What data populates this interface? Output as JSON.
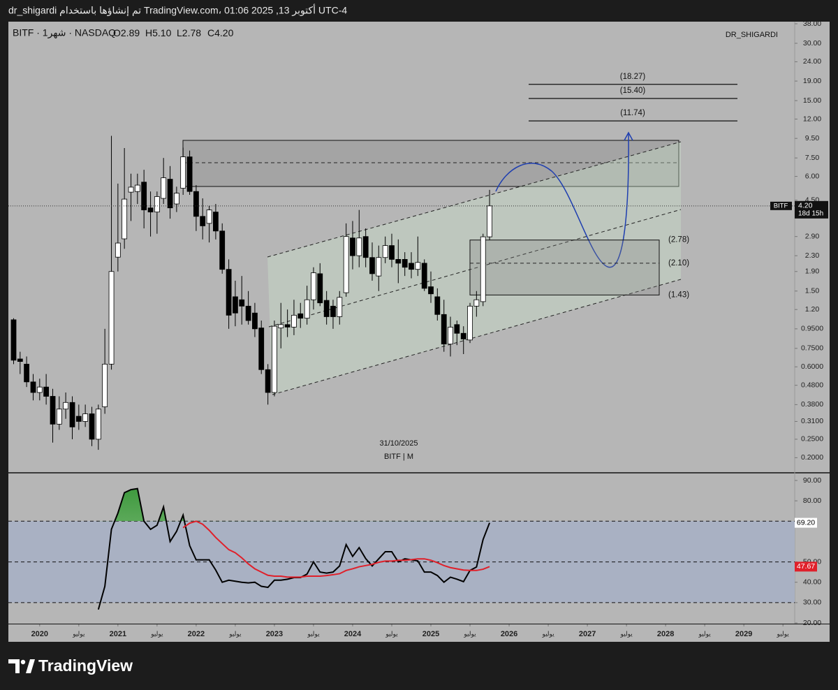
{
  "header": {
    "caption": "dr_shigardi تم إنشاؤها باستخدام TradingView.com، 01:06 2025 ,13 أكتوبر UTC-4"
  },
  "chart_data": [
    {
      "type": "candlestick",
      "symbol_line": "BITF · 1شهر · NASDAQ",
      "ohlc": [
        {
          "key": "O",
          "text": "2.89"
        },
        {
          "key": "H",
          "text": "5.10"
        },
        {
          "key": "L",
          "text": "2.78"
        },
        {
          "key": "C",
          "text": "4.20"
        }
      ],
      "watermark": "DR_SHIGARDI",
      "annotations": [
        "31/10/2025",
        "BITF | M"
      ],
      "log_scale": true,
      "grid": false,
      "up_color": "#ffffff",
      "down_color": "#000000",
      "xlim": [
        2019.6,
        2029.65
      ],
      "xticks": [
        2020,
        {
          "value": 2020.5,
          "label": "يوليو"
        },
        2021,
        {
          "value": 2021.5,
          "label": "يوليو"
        },
        2022,
        {
          "value": 2022.5,
          "label": "يوليو"
        },
        2023,
        {
          "value": 2023.5,
          "label": "يوليو"
        },
        2024,
        {
          "value": 2024.5,
          "label": "يوليو"
        },
        2025,
        {
          "value": 2025.5,
          "label": "يوليو"
        },
        2026,
        {
          "value": 2026.5,
          "label": "يوليو"
        },
        2027,
        {
          "value": 2027.5,
          "label": "يوليو"
        },
        2028,
        {
          "value": 2028.5,
          "label": "يوليو"
        },
        2029,
        {
          "value": 2029.5,
          "label": "يوليو"
        }
      ],
      "ylim": [
        0.168,
        38.65
      ],
      "yticks": [
        {
          "value": 38,
          "label": "38.00"
        },
        {
          "value": 30,
          "label": "30.00"
        },
        {
          "value": 24,
          "label": "24.00"
        },
        {
          "value": 19,
          "label": "19.00"
        },
        {
          "value": 15,
          "label": "15.00"
        },
        {
          "value": 12,
          "label": "12.00"
        },
        {
          "value": 9.5,
          "label": "9.50"
        },
        {
          "value": 7.5,
          "label": "7.50"
        },
        {
          "value": 6,
          "label": "6.00"
        },
        {
          "value": 4.5,
          "label": "4.50"
        },
        {
          "value": 2.9,
          "label": "2.90"
        },
        {
          "value": 2.3,
          "label": "2.30"
        },
        {
          "value": 1.9,
          "label": "1.90"
        },
        {
          "value": 1.5,
          "label": "1.50"
        },
        {
          "value": 1.2,
          "label": "1.20"
        },
        {
          "value": 0.95,
          "label": "0.9500"
        },
        {
          "value": 0.75,
          "label": "0.7500"
        },
        {
          "value": 0.6,
          "label": "0.6000"
        },
        {
          "value": 0.48,
          "label": "0.4800"
        },
        {
          "value": 0.38,
          "label": "0.3800"
        },
        {
          "value": 0.31,
          "label": "0.3100"
        },
        {
          "value": 0.25,
          "label": "0.2500"
        },
        {
          "value": 0.2,
          "label": "0.2000"
        }
      ],
      "x": [
        2019.667,
        2019.75,
        2019.833,
        2019.917,
        2020,
        2020.083,
        2020.167,
        2020.25,
        2020.333,
        2020.417,
        2020.5,
        2020.583,
        2020.667,
        2020.75,
        2020.833,
        2020.917,
        2021,
        2021.083,
        2021.167,
        2021.25,
        2021.333,
        2021.417,
        2021.5,
        2021.583,
        2021.667,
        2021.75,
        2021.833,
        2021.917,
        2022,
        2022.083,
        2022.167,
        2022.25,
        2022.333,
        2022.417,
        2022.5,
        2022.583,
        2022.667,
        2022.75,
        2022.833,
        2022.917,
        2023,
        2023.083,
        2023.167,
        2023.25,
        2023.333,
        2023.417,
        2023.5,
        2023.583,
        2023.667,
        2023.75,
        2023.833,
        2023.917,
        2024,
        2024.083,
        2024.167,
        2024.25,
        2024.333,
        2024.417,
        2024.5,
        2024.583,
        2024.667,
        2024.75,
        2024.833,
        2024.917,
        2025,
        2025.083,
        2025.167,
        2025.25,
        2025.333,
        2025.417,
        2025.5,
        2025.583,
        2025.667,
        2025.75
      ],
      "open": [
        1.06,
        0.66,
        0.62,
        0.5,
        0.44,
        0.47,
        0.42,
        0.3,
        0.36,
        0.39,
        0.33,
        0.31,
        0.34,
        0.25,
        0.37,
        0.62,
        2.26,
        2.82,
        4.96,
        5.0,
        5.6,
        4.1,
        3.9,
        4.6,
        5.8,
        4.3,
        5.2,
        7.6,
        5.0,
        3.7,
        3.4,
        3.9,
        3.1,
        1.95,
        1.4,
        1.35,
        1.25,
        1.15,
        0.96,
        0.58,
        0.44,
        0.96,
        1.0,
        0.97,
        1.14,
        1.08,
        1.35,
        1.85,
        1.34,
        1.25,
        1.1,
        1.47,
        2.85,
        2.3,
        2.9,
        2.25,
        1.8,
        2.25,
        2.6,
        2.2,
        2.2,
        2.1,
        1.95,
        2.1,
        1.58,
        1.4,
        1.13,
        0.79,
        1.0,
        0.9,
        0.83,
        1.25,
        1.32,
        2.89
      ],
      "high": [
        1.08,
        0.72,
        0.68,
        0.55,
        0.52,
        0.55,
        0.46,
        0.42,
        0.44,
        0.42,
        0.38,
        0.38,
        0.37,
        0.38,
        0.95,
        9.8,
        5.5,
        8.45,
        6.2,
        6.2,
        6.5,
        5.0,
        5.0,
        7.5,
        6.8,
        5.3,
        8.5,
        8.2,
        5.4,
        4.6,
        4.2,
        4.3,
        3.4,
        2.2,
        1.7,
        1.8,
        1.5,
        1.3,
        1.05,
        0.62,
        1.05,
        1.3,
        1.2,
        1.35,
        1.3,
        1.6,
        2.0,
        2.1,
        1.5,
        1.35,
        1.5,
        3.4,
        3.5,
        4.0,
        3.2,
        2.7,
        2.6,
        2.9,
        3.0,
        2.8,
        2.4,
        2.4,
        2.9,
        2.2,
        1.9,
        1.55,
        1.35,
        1.1,
        1.05,
        0.98,
        1.3,
        1.5,
        3.0,
        5.1
      ],
      "low": [
        0.62,
        0.55,
        0.47,
        0.4,
        0.4,
        0.38,
        0.24,
        0.28,
        0.32,
        0.25,
        0.28,
        0.29,
        0.23,
        0.22,
        0.34,
        0.58,
        1.9,
        2.5,
        3.5,
        4.3,
        3.2,
        2.9,
        3.0,
        4.3,
        3.6,
        3.9,
        4.8,
        4.8,
        3.1,
        2.8,
        2.7,
        2.8,
        1.85,
        0.95,
        0.98,
        1.0,
        1.0,
        0.86,
        0.55,
        0.38,
        0.42,
        0.75,
        0.86,
        0.88,
        0.96,
        1.0,
        1.2,
        1.25,
        1.0,
        0.95,
        1.0,
        1.4,
        1.95,
        2.0,
        2.0,
        1.7,
        1.5,
        2.1,
        2.0,
        1.65,
        1.8,
        1.75,
        1.8,
        1.5,
        1.3,
        1.05,
        0.72,
        0.68,
        0.78,
        0.7,
        0.8,
        1.1,
        1.25,
        2.78
      ],
      "close": [
        0.65,
        0.64,
        0.5,
        0.44,
        0.47,
        0.42,
        0.3,
        0.36,
        0.39,
        0.29,
        0.31,
        0.34,
        0.25,
        0.36,
        0.62,
        1.9,
        2.68,
        4.56,
        5.27,
        5.4,
        4.0,
        3.9,
        4.7,
        5.9,
        4.1,
        4.9,
        7.6,
        5.0,
        3.7,
        3.3,
        4.0,
        3.1,
        1.95,
        1.12,
        1.15,
        1.25,
        1.05,
        0.95,
        0.58,
        0.44,
        0.98,
        1.0,
        0.97,
        1.12,
        1.08,
        1.35,
        1.87,
        1.3,
        1.1,
        1.1,
        1.39,
        2.9,
        2.3,
        2.85,
        2.25,
        1.85,
        2.25,
        2.6,
        2.2,
        2.1,
        2.0,
        1.95,
        2.12,
        1.55,
        1.45,
        1.13,
        0.79,
        0.97,
        0.9,
        0.84,
        1.25,
        1.35,
        2.89,
        4.2
      ],
      "last_label": "4.20",
      "symbol_tag": "BITF",
      "countdown": "18d 15h",
      "targets": [
        {
          "value": 18.27,
          "label": "(18.27)"
        },
        {
          "value": 15.4,
          "label": "(15.40)"
        },
        {
          "value": 11.74,
          "label": "(11.74)"
        }
      ],
      "zone": [
        {
          "value": 2.78,
          "label": "(2.78)"
        },
        {
          "value": 2.1,
          "label": "(2.10)"
        },
        {
          "value": 1.43,
          "label": "(1.43)"
        }
      ]
    },
    {
      "type": "line",
      "xlim": [
        2019.6,
        2029.65
      ],
      "ylim": [
        19.66,
        93.42
      ],
      "yticks": [
        {
          "value": 90,
          "label": "90.00"
        },
        {
          "value": 80,
          "label": "80.00"
        },
        {
          "value": 50,
          "label": "50.00"
        },
        {
          "value": 40,
          "label": "40.00"
        },
        {
          "value": 30,
          "label": "30.00"
        },
        {
          "value": 20,
          "label": "20.00"
        }
      ],
      "hlines": [
        70,
        50,
        30
      ],
      "x": [
        2019.667,
        2019.75,
        2019.833,
        2019.917,
        2020,
        2020.083,
        2020.167,
        2020.25,
        2020.333,
        2020.417,
        2020.5,
        2020.583,
        2020.667,
        2020.75,
        2020.833,
        2020.917,
        2021,
        2021.083,
        2021.167,
        2021.25,
        2021.333,
        2021.417,
        2021.5,
        2021.583,
        2021.667,
        2021.75,
        2021.833,
        2021.917,
        2022,
        2022.083,
        2022.167,
        2022.25,
        2022.333,
        2022.417,
        2022.5,
        2022.583,
        2022.667,
        2022.75,
        2022.833,
        2022.917,
        2023,
        2023.083,
        2023.167,
        2023.25,
        2023.333,
        2023.417,
        2023.5,
        2023.583,
        2023.667,
        2023.75,
        2023.833,
        2023.917,
        2024,
        2024.083,
        2024.167,
        2024.25,
        2024.333,
        2024.417,
        2024.5,
        2024.583,
        2024.667,
        2024.75,
        2024.833,
        2024.917,
        2025,
        2025.083,
        2025.167,
        2025.25,
        2025.333,
        2025.417,
        2025.5,
        2025.583,
        2025.667,
        2025.75
      ],
      "series": [
        {
          "color": "#000000",
          "label_bg": "#ffffff",
          "label_fg": "#000000",
          "last_label": "69.20",
          "values": [
            null,
            null,
            null,
            null,
            null,
            null,
            null,
            null,
            null,
            null,
            null,
            null,
            null,
            26.6,
            38,
            66,
            74,
            84,
            85.5,
            86,
            70,
            66,
            68,
            77,
            60,
            65,
            73,
            58,
            51,
            51,
            51,
            46,
            40,
            41,
            40.5,
            40,
            39.7,
            40,
            38,
            37.5,
            41,
            41,
            41.5,
            42.3,
            42.3,
            44,
            50,
            45,
            44.5,
            45,
            48,
            58.5,
            52.7,
            57,
            51.6,
            48,
            51.5,
            55,
            55,
            50,
            51.5,
            51,
            50.5,
            45,
            45,
            43.3,
            40,
            42.5,
            41.5,
            40.3,
            45.8,
            47.5,
            61,
            69.2
          ]
        },
        {
          "color": "#e0202a",
          "label_bg": "#e0202a",
          "label_fg": "#ffffff",
          "last_label": "47.67",
          "values": [
            null,
            null,
            null,
            null,
            null,
            null,
            null,
            null,
            null,
            null,
            null,
            null,
            null,
            null,
            null,
            null,
            null,
            null,
            null,
            null,
            null,
            null,
            null,
            null,
            null,
            null,
            66.8,
            69,
            70,
            68.5,
            65.5,
            62,
            59,
            56,
            54.5,
            52,
            49,
            46.6,
            45,
            43.4,
            43,
            43,
            42.5,
            42.5,
            42.5,
            43,
            43,
            43,
            43.3,
            43.7,
            44.2,
            45.8,
            46.6,
            47.6,
            48.2,
            48.8,
            49.8,
            50.4,
            50.4,
            50.8,
            50.8,
            51.1,
            51.5,
            51.5,
            50.8,
            49.6,
            48.2,
            47.2,
            46.6,
            46,
            45.8,
            45.8,
            46.4,
            47.67
          ]
        }
      ]
    }
  ],
  "footer": {
    "brand": "TradingView"
  }
}
